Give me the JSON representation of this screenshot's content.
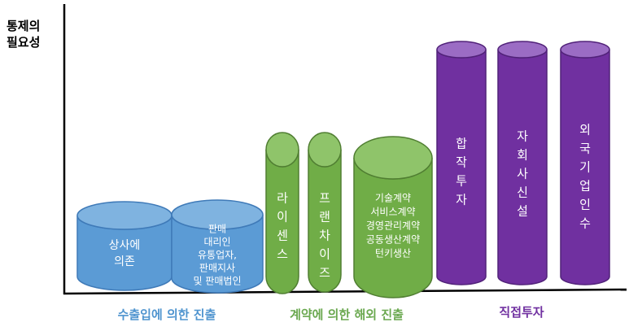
{
  "axis": {
    "ylabel_lines": [
      "통제의",
      "필요성"
    ]
  },
  "colors": {
    "blue_body": "#5b9bd5",
    "blue_top": "#7fb3e0",
    "blue_stroke": "#3f7ab8",
    "green_body": "#70ad47",
    "green_top": "#8fc46a",
    "green_stroke": "#507e32",
    "purple_body": "#7030a0",
    "purple_top": "#9b6cc4",
    "purple_stroke": "#512279",
    "group_blue": "#4f94cf",
    "group_green": "#6aa84f",
    "group_purple": "#7030a0"
  },
  "groups": [
    {
      "id": "export",
      "label": "수출입에 의한 진출",
      "color_key": "group_blue"
    },
    {
      "id": "contract",
      "label": "계약에 의한 해외 진출",
      "color_key": "group_green"
    },
    {
      "id": "fdi",
      "label": "직접투자",
      "color_key": "group_purple"
    }
  ],
  "cylinders": [
    {
      "id": "trading-company",
      "group": "export",
      "orient": "h",
      "lines": [
        "상사에",
        "의존"
      ]
    },
    {
      "id": "sales-agency",
      "group": "export",
      "orient": "h",
      "lines": [
        "판매",
        "대리인",
        "유통업자,",
        "판매지사",
        "및 판매법인"
      ]
    },
    {
      "id": "license",
      "group": "contract",
      "orient": "v",
      "text": "라이센스"
    },
    {
      "id": "franchise",
      "group": "contract",
      "orient": "v",
      "text": "프랜차이즈"
    },
    {
      "id": "contracts",
      "group": "contract",
      "orient": "h",
      "lines": [
        "기술계약",
        "서비스계약",
        "경영관리계약",
        "공동생산계약",
        "턴키생산"
      ]
    },
    {
      "id": "joint-venture",
      "group": "fdi",
      "orient": "v",
      "text": "합작투자"
    },
    {
      "id": "subsidiary",
      "group": "fdi",
      "orient": "v",
      "text": "자회사신설"
    },
    {
      "id": "acquisition",
      "group": "fdi",
      "orient": "v",
      "text": "외국기업인수"
    }
  ]
}
